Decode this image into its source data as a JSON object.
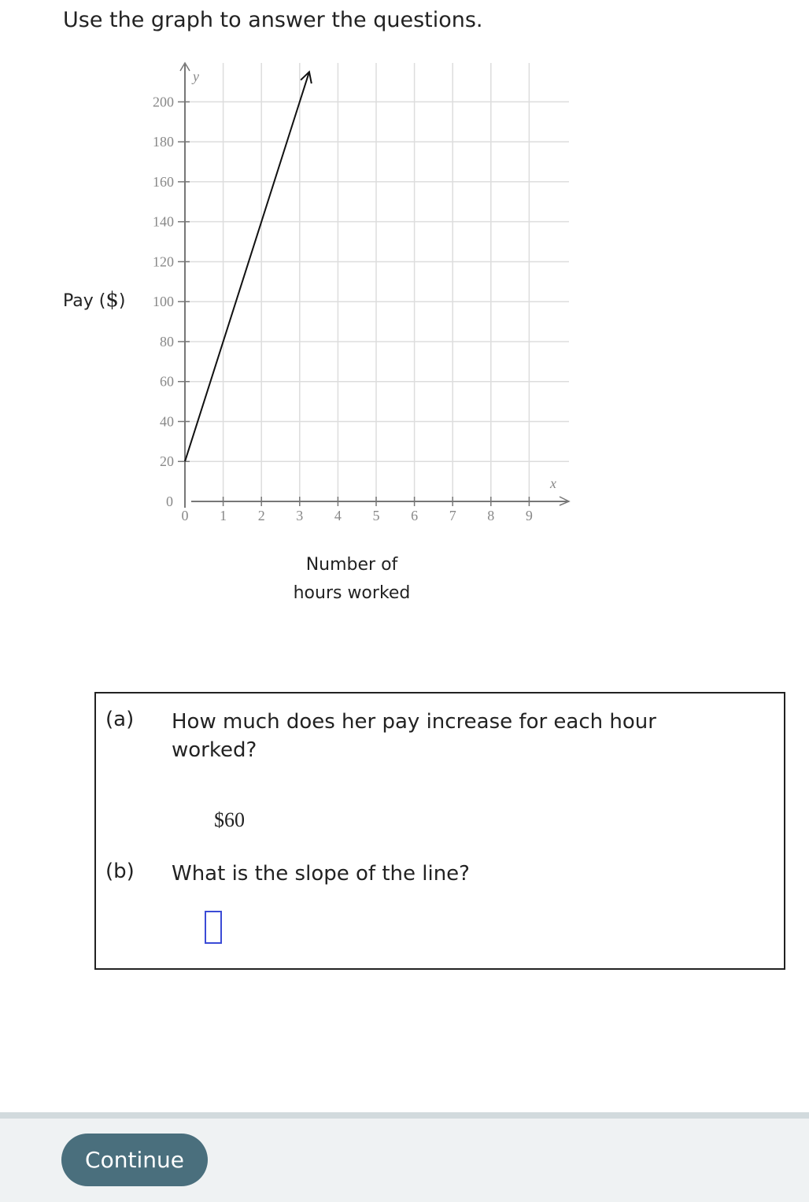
{
  "prompt": "Use the graph to answer the questions.",
  "chart_data": {
    "type": "line",
    "xlabel": "Number of hours worked",
    "xlabel_lines": [
      "Number of",
      "hours worked"
    ],
    "ylabel_text": "Pay (",
    "ylabel_unit": "$",
    "ylabel_close": ")",
    "x_axis_var": "x",
    "y_axis_var": "y",
    "x_ticks": [
      0,
      1,
      2,
      3,
      4,
      5,
      6,
      7,
      8,
      9
    ],
    "y_ticks": [
      0,
      20,
      40,
      60,
      80,
      100,
      120,
      140,
      160,
      180,
      200
    ],
    "xlim": [
      0,
      10
    ],
    "ylim": [
      0,
      220
    ],
    "grid": true,
    "series": [
      {
        "x": [
          0,
          3.25
        ],
        "y": [
          20,
          215
        ],
        "arrow_end": true
      }
    ],
    "line_color": "#111111",
    "grid_color": "#dddddd",
    "axis_color": "#777777"
  },
  "questions": [
    {
      "label": "(a)",
      "text_line1": "How much does her pay increase for each hour",
      "text_line2": "worked?",
      "answer": "$60"
    },
    {
      "label": "(b)",
      "text": "What is the slope of the line?",
      "answer": ""
    }
  ],
  "footer": {
    "continue_label": "Continue",
    "button_color": "#4a6f7d"
  }
}
